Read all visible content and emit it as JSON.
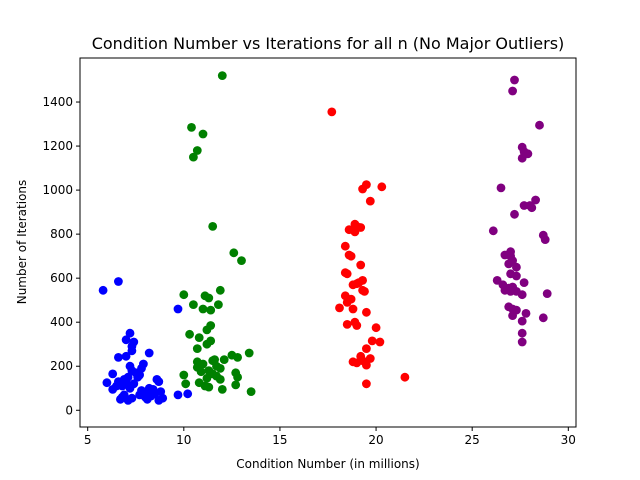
{
  "chart_data": {
    "type": "scatter",
    "title": "Condition Number vs Iterations for all n (No Major Outliers)",
    "xlabel": "Condition Number (in millions)",
    "ylabel": "Number of Iterations",
    "xlim": [
      4.6,
      30.4
    ],
    "ylim": [
      -76,
      1600
    ],
    "xticks": [
      5,
      10,
      15,
      20,
      25,
      30
    ],
    "yticks": [
      0,
      200,
      400,
      600,
      800,
      1000,
      1200,
      1400
    ],
    "grid": false,
    "series": [
      {
        "color": "#0000ff",
        "points": [
          [
            5.8,
            545
          ],
          [
            6.6,
            585
          ],
          [
            9.7,
            460
          ],
          [
            7.2,
            350
          ],
          [
            7.0,
            320
          ],
          [
            7.4,
            310
          ],
          [
            7.3,
            290
          ],
          [
            7.3,
            270
          ],
          [
            7.0,
            245
          ],
          [
            6.6,
            240
          ],
          [
            8.2,
            260
          ],
          [
            7.9,
            210
          ],
          [
            7.2,
            200
          ],
          [
            7.8,
            190
          ],
          [
            7.3,
            180
          ],
          [
            7.5,
            170
          ],
          [
            7.7,
            160
          ],
          [
            6.3,
            165
          ],
          [
            7.1,
            150
          ],
          [
            7.6,
            150
          ],
          [
            6.9,
            140
          ],
          [
            6.6,
            130
          ],
          [
            7.0,
            125
          ],
          [
            6.0,
            125
          ],
          [
            7.4,
            120
          ],
          [
            8.6,
            140
          ],
          [
            8.7,
            130
          ],
          [
            6.5,
            110
          ],
          [
            6.8,
            110
          ],
          [
            7.2,
            100
          ],
          [
            6.3,
            95
          ],
          [
            8.2,
            100
          ],
          [
            8.4,
            95
          ],
          [
            7.8,
            90
          ],
          [
            8.8,
            85
          ],
          [
            8.0,
            80
          ],
          [
            8.5,
            75
          ],
          [
            9.7,
            70
          ],
          [
            10.2,
            75
          ],
          [
            6.9,
            70
          ],
          [
            7.7,
            70
          ],
          [
            8.3,
            65
          ],
          [
            6.8,
            60
          ],
          [
            8.0,
            60
          ],
          [
            7.3,
            55
          ],
          [
            6.7,
            50
          ],
          [
            8.9,
            55
          ],
          [
            8.7,
            45
          ],
          [
            7.1,
            45
          ],
          [
            8.1,
            50
          ]
        ]
      },
      {
        "color": "#008000",
        "points": [
          [
            12.0,
            1520
          ],
          [
            10.4,
            1285
          ],
          [
            11.0,
            1255
          ],
          [
            10.7,
            1180
          ],
          [
            10.5,
            1150
          ],
          [
            11.5,
            835
          ],
          [
            12.6,
            715
          ],
          [
            13.0,
            680
          ],
          [
            11.9,
            545
          ],
          [
            10.0,
            525
          ],
          [
            11.1,
            520
          ],
          [
            11.3,
            510
          ],
          [
            10.5,
            480
          ],
          [
            11.8,
            480
          ],
          [
            11.0,
            460
          ],
          [
            11.4,
            455
          ],
          [
            11.4,
            385
          ],
          [
            11.2,
            365
          ],
          [
            10.3,
            345
          ],
          [
            10.8,
            330
          ],
          [
            11.4,
            315
          ],
          [
            11.2,
            300
          ],
          [
            10.7,
            280
          ],
          [
            13.4,
            260
          ],
          [
            12.5,
            250
          ],
          [
            12.8,
            240
          ],
          [
            12.1,
            230
          ],
          [
            11.5,
            225
          ],
          [
            10.7,
            220
          ],
          [
            11.0,
            210
          ],
          [
            11.7,
            200
          ],
          [
            10.7,
            195
          ],
          [
            11.9,
            190
          ],
          [
            11.3,
            180
          ],
          [
            10.9,
            175
          ],
          [
            12.7,
            170
          ],
          [
            11.5,
            165
          ],
          [
            10.0,
            160
          ],
          [
            11.7,
            155
          ],
          [
            12.8,
            150
          ],
          [
            11.2,
            145
          ],
          [
            11.9,
            140
          ],
          [
            10.8,
            125
          ],
          [
            10.1,
            120
          ],
          [
            12.7,
            115
          ],
          [
            11.1,
            110
          ],
          [
            11.3,
            105
          ],
          [
            12.0,
            95
          ],
          [
            13.5,
            85
          ],
          [
            11.6,
            230
          ]
        ]
      },
      {
        "color": "#ff0000",
        "points": [
          [
            17.7,
            1355
          ],
          [
            19.5,
            1025
          ],
          [
            20.3,
            1015
          ],
          [
            19.3,
            1005
          ],
          [
            19.7,
            950
          ],
          [
            18.9,
            845
          ],
          [
            19.0,
            835
          ],
          [
            19.2,
            830
          ],
          [
            18.6,
            820
          ],
          [
            18.9,
            810
          ],
          [
            18.4,
            745
          ],
          [
            18.6,
            705
          ],
          [
            18.7,
            700
          ],
          [
            19.2,
            660
          ],
          [
            18.4,
            625
          ],
          [
            18.5,
            620
          ],
          [
            19.3,
            590
          ],
          [
            19.1,
            580
          ],
          [
            19.0,
            575
          ],
          [
            18.8,
            570
          ],
          [
            19.3,
            545
          ],
          [
            19.4,
            540
          ],
          [
            18.4,
            520
          ],
          [
            18.7,
            505
          ],
          [
            18.5,
            490
          ],
          [
            18.1,
            465
          ],
          [
            18.8,
            460
          ],
          [
            19.5,
            445
          ],
          [
            18.9,
            400
          ],
          [
            18.5,
            390
          ],
          [
            19.0,
            385
          ],
          [
            20.0,
            375
          ],
          [
            19.8,
            315
          ],
          [
            20.2,
            310
          ],
          [
            19.5,
            280
          ],
          [
            19.2,
            245
          ],
          [
            19.7,
            235
          ],
          [
            19.3,
            225
          ],
          [
            18.8,
            220
          ],
          [
            19.0,
            215
          ],
          [
            19.5,
            205
          ],
          [
            21.5,
            150
          ],
          [
            19.5,
            120
          ]
        ]
      },
      {
        "color": "#800080",
        "points": [
          [
            27.2,
            1500
          ],
          [
            27.1,
            1450
          ],
          [
            28.5,
            1295
          ],
          [
            27.6,
            1195
          ],
          [
            27.7,
            1175
          ],
          [
            27.9,
            1165
          ],
          [
            27.6,
            1145
          ],
          [
            26.5,
            1010
          ],
          [
            28.3,
            955
          ],
          [
            27.7,
            930
          ],
          [
            28.0,
            930
          ],
          [
            28.1,
            920
          ],
          [
            27.2,
            890
          ],
          [
            26.1,
            815
          ],
          [
            28.7,
            795
          ],
          [
            28.8,
            775
          ],
          [
            27.0,
            720
          ],
          [
            26.7,
            705
          ],
          [
            27.0,
            700
          ],
          [
            27.1,
            680
          ],
          [
            26.9,
            665
          ],
          [
            27.3,
            650
          ],
          [
            27.0,
            620
          ],
          [
            27.3,
            610
          ],
          [
            26.3,
            590
          ],
          [
            27.7,
            580
          ],
          [
            26.6,
            570
          ],
          [
            27.1,
            560
          ],
          [
            26.9,
            555
          ],
          [
            26.7,
            545
          ],
          [
            27.0,
            540
          ],
          [
            27.3,
            540
          ],
          [
            28.9,
            530
          ],
          [
            27.6,
            525
          ],
          [
            26.9,
            470
          ],
          [
            27.1,
            460
          ],
          [
            27.3,
            455
          ],
          [
            27.8,
            440
          ],
          [
            27.1,
            430
          ],
          [
            28.7,
            420
          ],
          [
            27.6,
            405
          ],
          [
            27.6,
            350
          ],
          [
            27.6,
            310
          ]
        ]
      }
    ]
  }
}
